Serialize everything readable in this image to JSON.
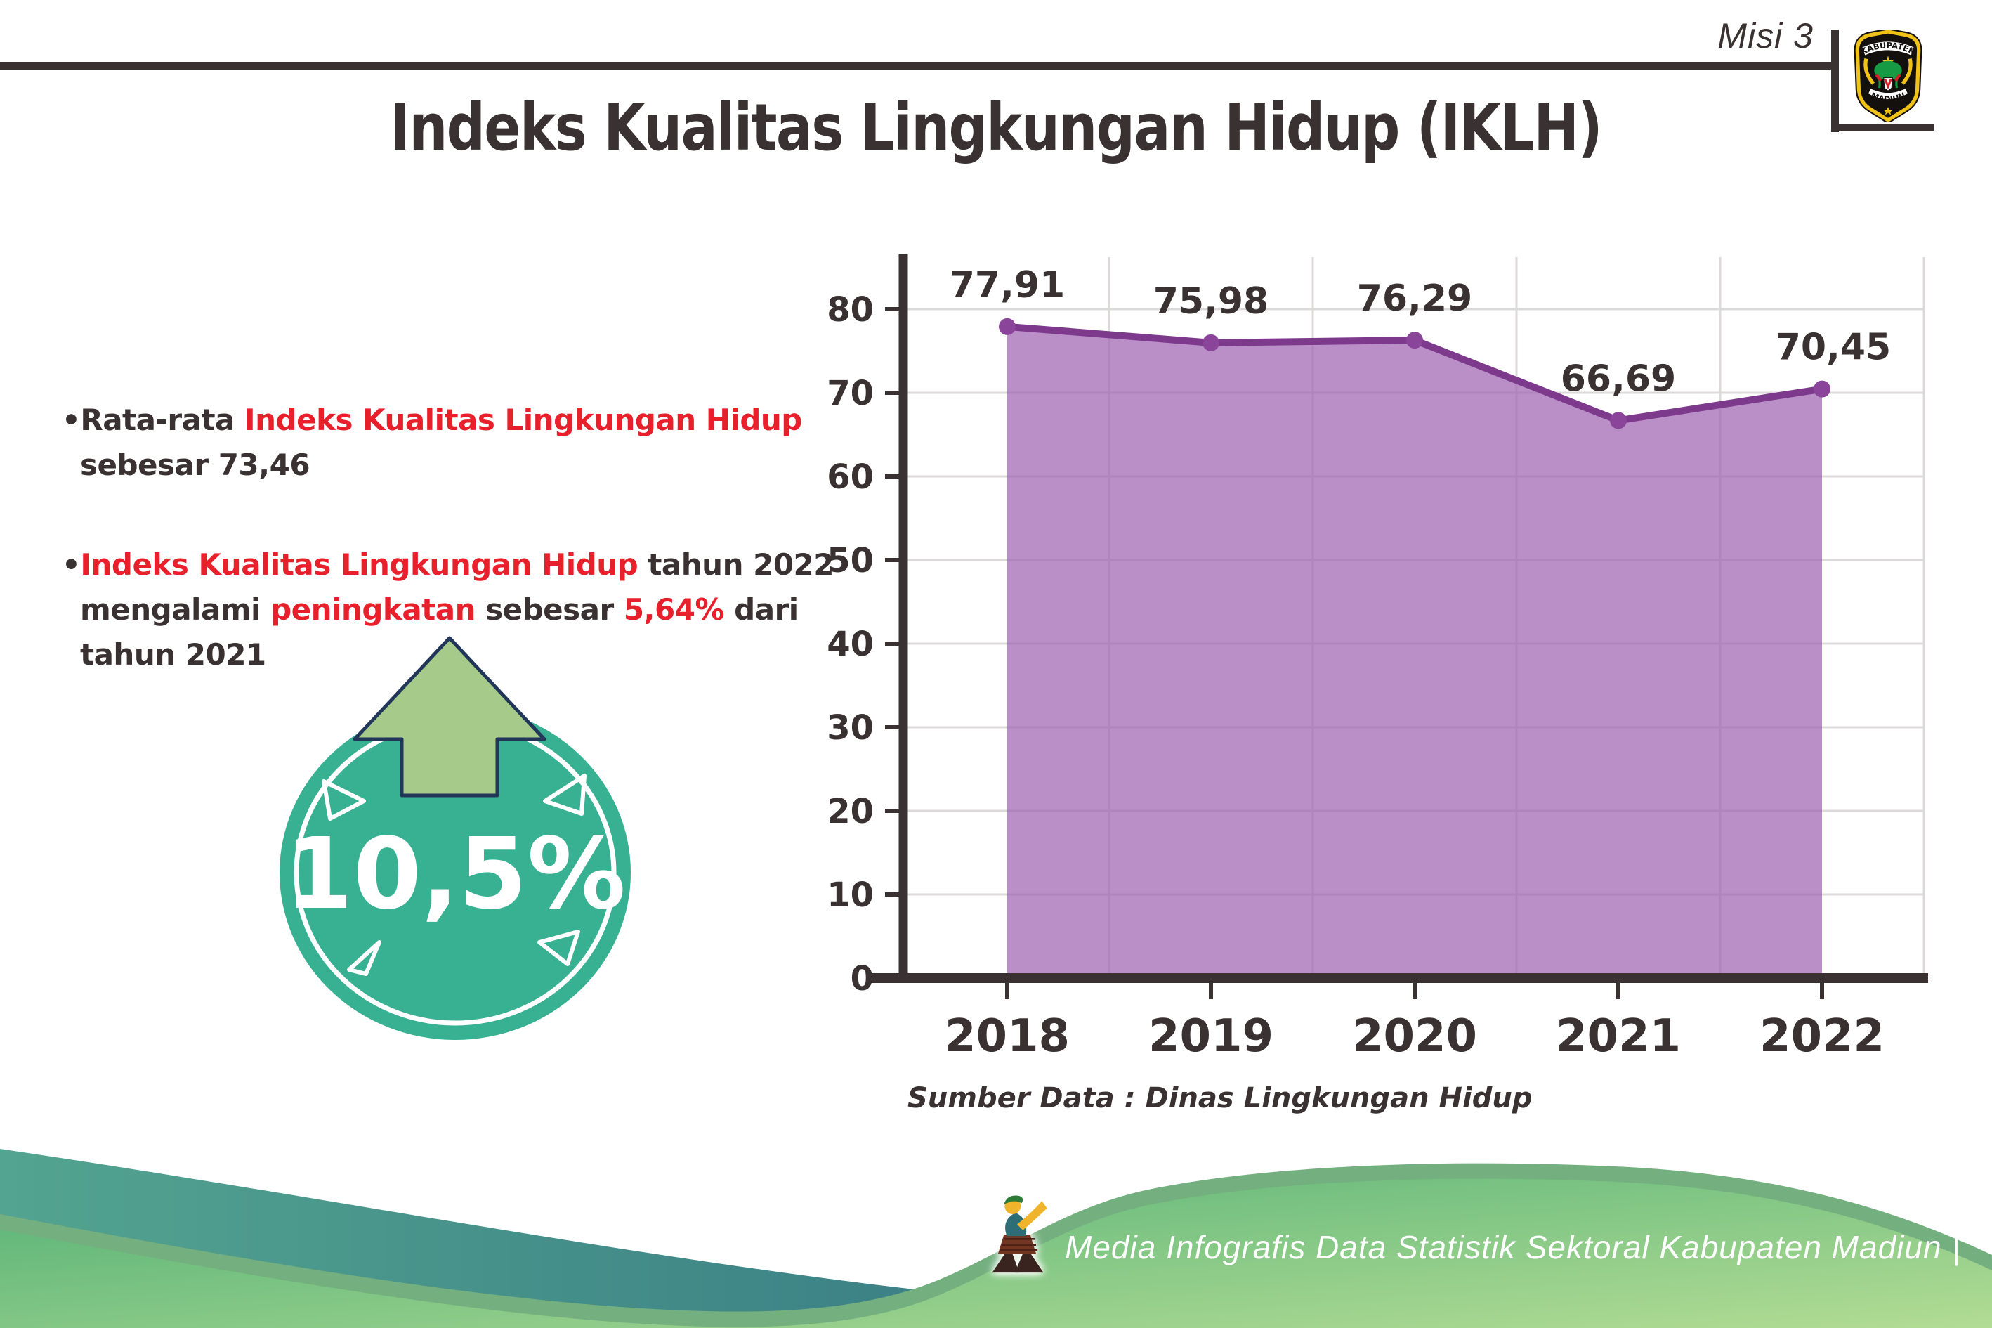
{
  "header": {
    "misi_label": "Misi 3",
    "logo": {
      "top_text": "KABUPATEN",
      "bottom_text": "MADIUN"
    }
  },
  "title": "Indeks Kualitas Lingkungan Hidup (IKLH)",
  "bullets": [
    {
      "lines": [
        [
          {
            "t": "•",
            "c": "dark"
          },
          {
            "t": "Rata-rata ",
            "c": "dark"
          },
          {
            "t": "Indeks Kualitas Lingkungan Hidup",
            "c": "red"
          }
        ],
        [
          {
            "t": "sebesar 73,46",
            "c": "dark"
          }
        ]
      ]
    },
    {
      "lines": [
        [
          {
            "t": "•",
            "c": "dark"
          },
          {
            "t": "Indeks Kualitas Lingkungan Hidup",
            "c": "red"
          },
          {
            "t": " tahun 2022",
            "c": "dark"
          }
        ],
        [
          {
            "t": "mengalami ",
            "c": "dark"
          },
          {
            "t": "peningkatan",
            "c": "red"
          },
          {
            "t": " sebesar ",
            "c": "dark"
          },
          {
            "t": "5,64%",
            "c": "red"
          },
          {
            "t": " dari",
            "c": "dark"
          }
        ],
        [
          {
            "t": "tahun 2021",
            "c": "dark"
          }
        ]
      ]
    }
  ],
  "badge": {
    "value": "10,5%"
  },
  "chart_data": {
    "type": "area",
    "title": "",
    "x": [
      "2018",
      "2019",
      "2020",
      "2021",
      "2022"
    ],
    "series": [
      {
        "name": "IKLH",
        "values": [
          77.91,
          75.98,
          76.29,
          66.69,
          70.45
        ]
      }
    ],
    "point_labels": [
      "77,91",
      "75,98",
      "76,29",
      "66,69",
      "70,45"
    ],
    "ylim": [
      0,
      80
    ],
    "ytick_step": 10,
    "grid": true,
    "legend": "none",
    "source": "Sumber Data : Dinas Lingkungan Hidup"
  },
  "footer": {
    "credit": "Media Infografis Data Statistik Sektoral Kabupaten Madiun |"
  },
  "colors": {
    "dark": "#3a3132",
    "red": "#e8202c",
    "line": "#7d3a8d",
    "dot": "#8a4499",
    "fill": "rgba(160,100,178,0.72)",
    "grid": "#dcd9d9",
    "teal": "#38b193",
    "arrow": "#a5ca89",
    "arrow-outline": "#223659",
    "footer-teal-1": "#53a490",
    "footer-teal-2": "#2e6d80",
    "footer-green-1": "#53b176",
    "footer-green-2": "#b2dc94",
    "footer-edge": "#74b07f"
  }
}
